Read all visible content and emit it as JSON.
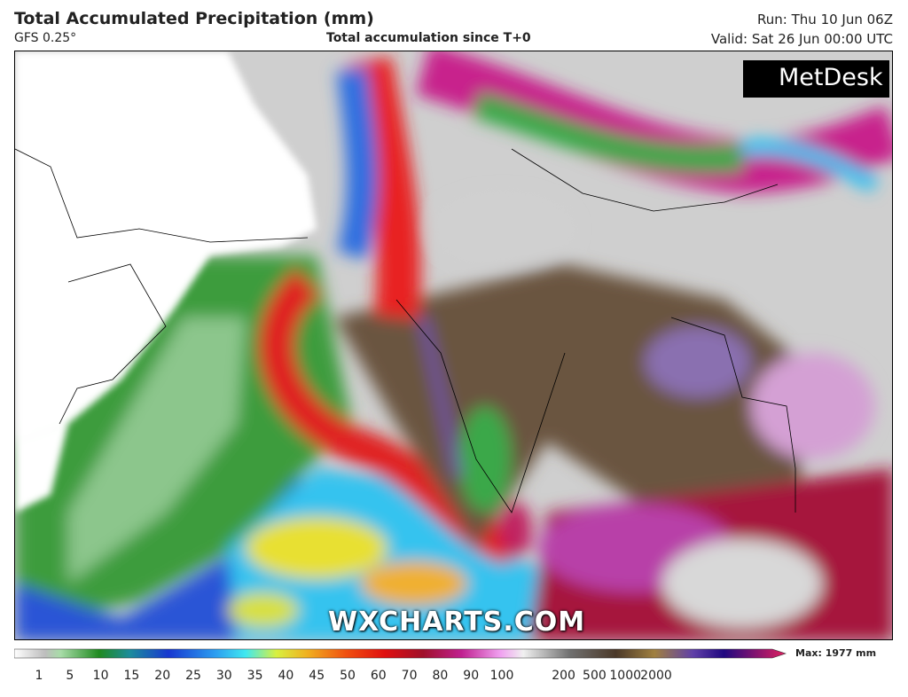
{
  "header": {
    "title": "Total Accumulated Precipitation (mm)",
    "model": "GFS 0.25°",
    "subtitle": "Total accumulation since T+0",
    "run": "Run: Thu 10 Jun 06Z",
    "valid": "Valid: Sat 26 Jun 00:00 UTC"
  },
  "logo": "MetDesk",
  "watermark": "WXCHARTS.COM",
  "colorbar": {
    "labels": [
      1,
      5,
      10,
      15,
      20,
      25,
      30,
      35,
      40,
      45,
      50,
      60,
      70,
      80,
      90,
      100,
      200,
      500,
      1000,
      2000
    ],
    "max_label": "Max: 1977 mm"
  }
}
